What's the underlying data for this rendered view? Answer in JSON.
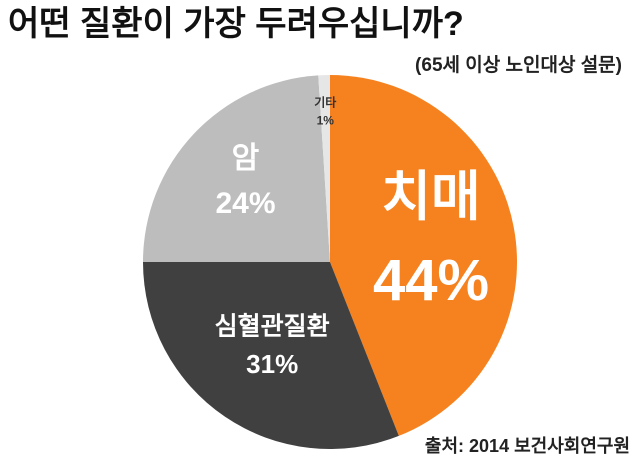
{
  "chart_data": {
    "type": "pie",
    "title": "어떤 질환이 가장 두려우십니까?",
    "subtitle": "(65세 이상 노인대상 설문)",
    "source": "출처: 2014 보건사회연구원",
    "categories": [
      "치매",
      "심혈관질환",
      "암",
      "기타"
    ],
    "values": [
      44,
      31,
      24,
      1
    ],
    "value_labels": [
      "44%",
      "31%",
      "24%",
      "1%"
    ],
    "colors": [
      "#f5821f",
      "#404040",
      "#bdbdbd",
      "#e6e6e6"
    ]
  }
}
